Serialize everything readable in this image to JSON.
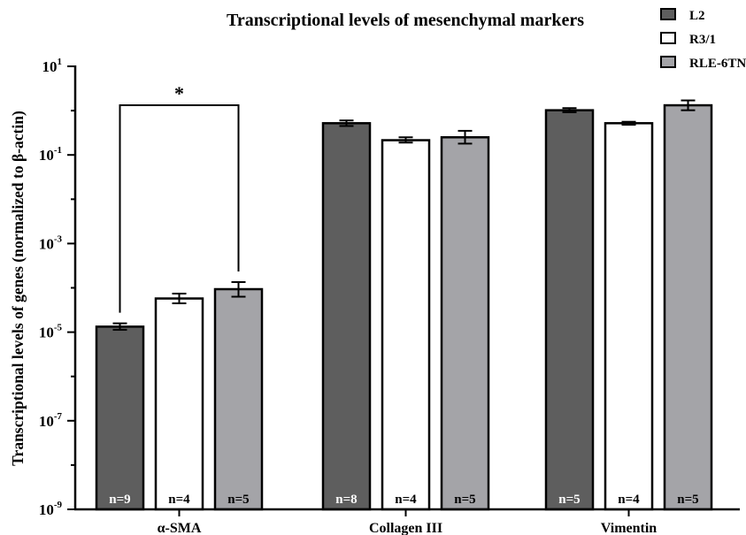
{
  "chart_data": {
    "type": "bar",
    "title": "Transcriptional levels of mesenchymal markers",
    "ylabel": "Transcriptional levels of genes (normalized to β-actin)",
    "xlabel": "",
    "yscale": "log",
    "ylim": [
      1e-09,
      10
    ],
    "yticks": [
      {
        "base": "10",
        "exp": "1",
        "value": 10
      },
      {
        "base": "10",
        "exp": "-1",
        "value": 0.1
      },
      {
        "base": "10",
        "exp": "-3",
        "value": 0.001
      },
      {
        "base": "10",
        "exp": "-5",
        "value": 1e-05
      },
      {
        "base": "10",
        "exp": "-7",
        "value": 1e-07
      },
      {
        "base": "10",
        "exp": "-9",
        "value": 1e-09
      }
    ],
    "categories": [
      "α-SMA",
      "Collagen III",
      "Vimentin"
    ],
    "series": [
      {
        "name": "L2",
        "color": "#5e5e5e",
        "text_color": "#ffffff",
        "values": [
          1.33e-05,
          0.52,
          1.02
        ],
        "err_low": [
          1.13e-05,
          0.45,
          0.92
        ],
        "err_high": [
          1.58e-05,
          0.6,
          1.14
        ],
        "n": [
          "n=9",
          "n=8",
          "n=5"
        ]
      },
      {
        "name": "R3/1",
        "color": "#ffffff",
        "text_color": "#000000",
        "values": [
          5.75e-05,
          0.215,
          0.52
        ],
        "err_low": [
          4.47e-05,
          0.19,
          0.48
        ],
        "err_high": [
          7.41e-05,
          0.25,
          0.56
        ],
        "n": [
          "n=4",
          "n=4",
          "n=4"
        ]
      },
      {
        "name": "RLE-6TN",
        "color": "#a4a4a8",
        "text_color": "#000000",
        "values": [
          9.33e-05,
          0.25,
          1.32
        ],
        "err_low": [
          6.31e-05,
          0.18,
          1.02
        ],
        "err_high": [
          0.000135,
          0.35,
          1.7
        ],
        "n": [
          "n=5",
          "n=5",
          "n=5"
        ]
      }
    ],
    "significance": [
      {
        "category": "α-SMA",
        "from_series": "L2",
        "to_series": "RLE-6TN",
        "label": "*"
      }
    ],
    "legend": {
      "position": "top-right"
    },
    "grid": false
  }
}
